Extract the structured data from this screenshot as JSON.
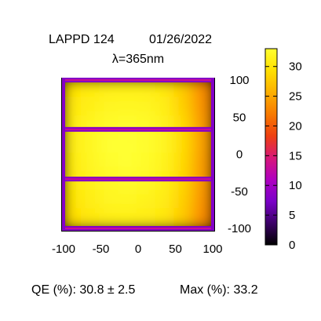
{
  "chart_data": {
    "type": "heatmap",
    "title": {
      "device": "LAPPD 124",
      "date": "01/26/2022",
      "wavelength": "λ=365nm"
    },
    "x": {
      "range": [
        -100,
        100
      ],
      "ticks": [
        "-100",
        "-50",
        "0",
        "50",
        "100"
      ]
    },
    "y": {
      "range": [
        -100,
        100
      ],
      "ticks": [
        "100",
        "50",
        "0",
        "-50",
        "-100"
      ]
    },
    "colorbar": {
      "range": [
        0,
        33
      ],
      "ticks": [
        "30",
        "25",
        "20",
        "15",
        "10",
        "5",
        "0"
      ],
      "palette": [
        "#000000",
        "#3c0068",
        "#7a00c8",
        "#b000c0",
        "#d81878",
        "#ee4010",
        "#f87a00",
        "#fcb000",
        "#ffe000",
        "#ffff30"
      ]
    },
    "map": {
      "description_free": true,
      "x_centers": [
        -87.5,
        -62.5,
        -37.5,
        -12.5,
        12.5,
        37.5,
        62.5,
        87.5
      ],
      "y_centers": [
        87.5,
        62.5,
        37.5,
        12.5,
        -12.5,
        -37.5,
        -62.5,
        -87.5
      ],
      "qe_grid": [
        [
          29.5,
          30.5,
          31.0,
          31.2,
          31.0,
          30.2,
          27.5,
          23.0
        ],
        [
          30.2,
          31.2,
          31.8,
          32.0,
          31.8,
          31.0,
          28.0,
          23.5
        ],
        [
          30.5,
          31.8,
          32.5,
          32.8,
          32.5,
          31.5,
          28.8,
          24.0
        ],
        [
          30.8,
          32.0,
          33.0,
          33.2,
          32.8,
          31.8,
          29.0,
          24.5
        ],
        [
          30.6,
          31.8,
          32.8,
          33.0,
          32.6,
          31.6,
          28.8,
          24.2
        ],
        [
          30.2,
          31.5,
          32.2,
          32.5,
          32.2,
          31.2,
          28.5,
          24.0
        ],
        [
          29.8,
          31.0,
          31.8,
          32.0,
          31.6,
          30.8,
          28.0,
          23.6
        ],
        [
          29.0,
          30.2,
          31.0,
          31.2,
          30.8,
          30.0,
          27.5,
          23.0
        ]
      ],
      "strip_qe": 8,
      "strips_y": [
        100,
        33.5,
        -33.5,
        -100
      ]
    },
    "summary": {
      "qe_text": "QE (%): 30.8 ± 2.5",
      "max_text": "Max (%): 33.2"
    }
  }
}
